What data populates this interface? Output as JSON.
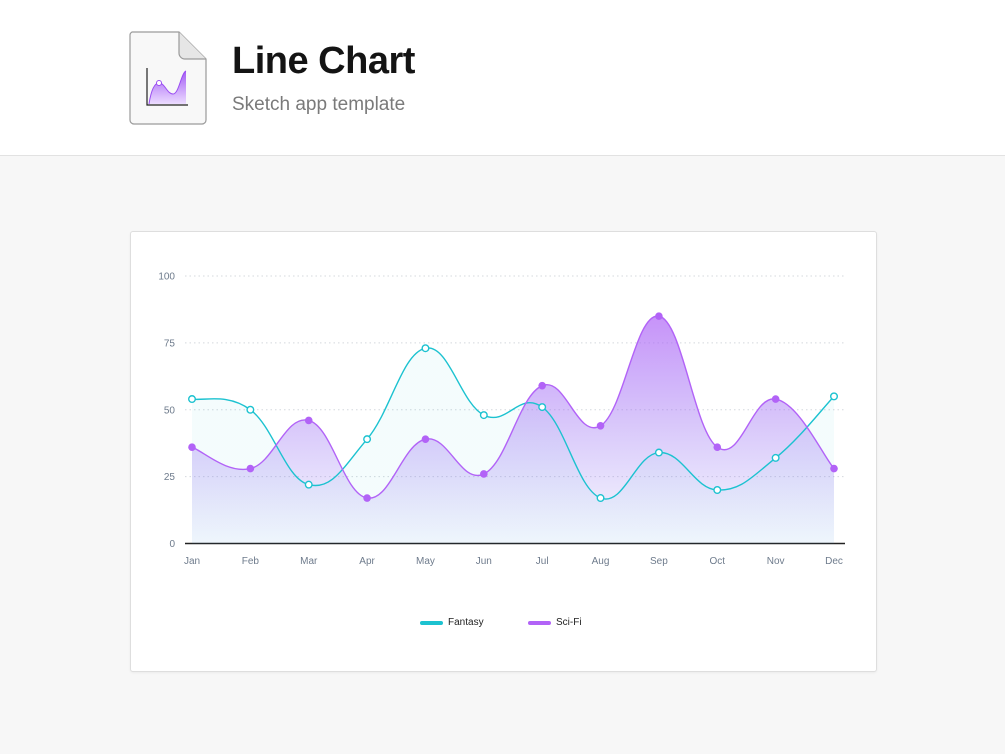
{
  "header": {
    "title": "Line Chart",
    "subtitle": "Sketch app template"
  },
  "chart_data": {
    "type": "area",
    "categories": [
      "Jan",
      "Feb",
      "Mar",
      "Apr",
      "May",
      "Jun",
      "Jul",
      "Aug",
      "Sep",
      "Oct",
      "Nov",
      "Dec"
    ],
    "series": [
      {
        "name": "Fantasy",
        "color": "#1cc2d0",
        "values": [
          54,
          50,
          22,
          39,
          73,
          48,
          51,
          17,
          34,
          20,
          32,
          55
        ]
      },
      {
        "name": "Sci-Fi",
        "color": "#b263f7",
        "values": [
          36,
          28,
          46,
          17,
          39,
          26,
          59,
          44,
          85,
          36,
          54,
          28
        ]
      }
    ],
    "yticks": [
      0,
      25,
      50,
      75,
      100
    ],
    "ylim": [
      0,
      100
    ],
    "grid": true,
    "legend": "bottom-center",
    "curve": "smooth"
  }
}
